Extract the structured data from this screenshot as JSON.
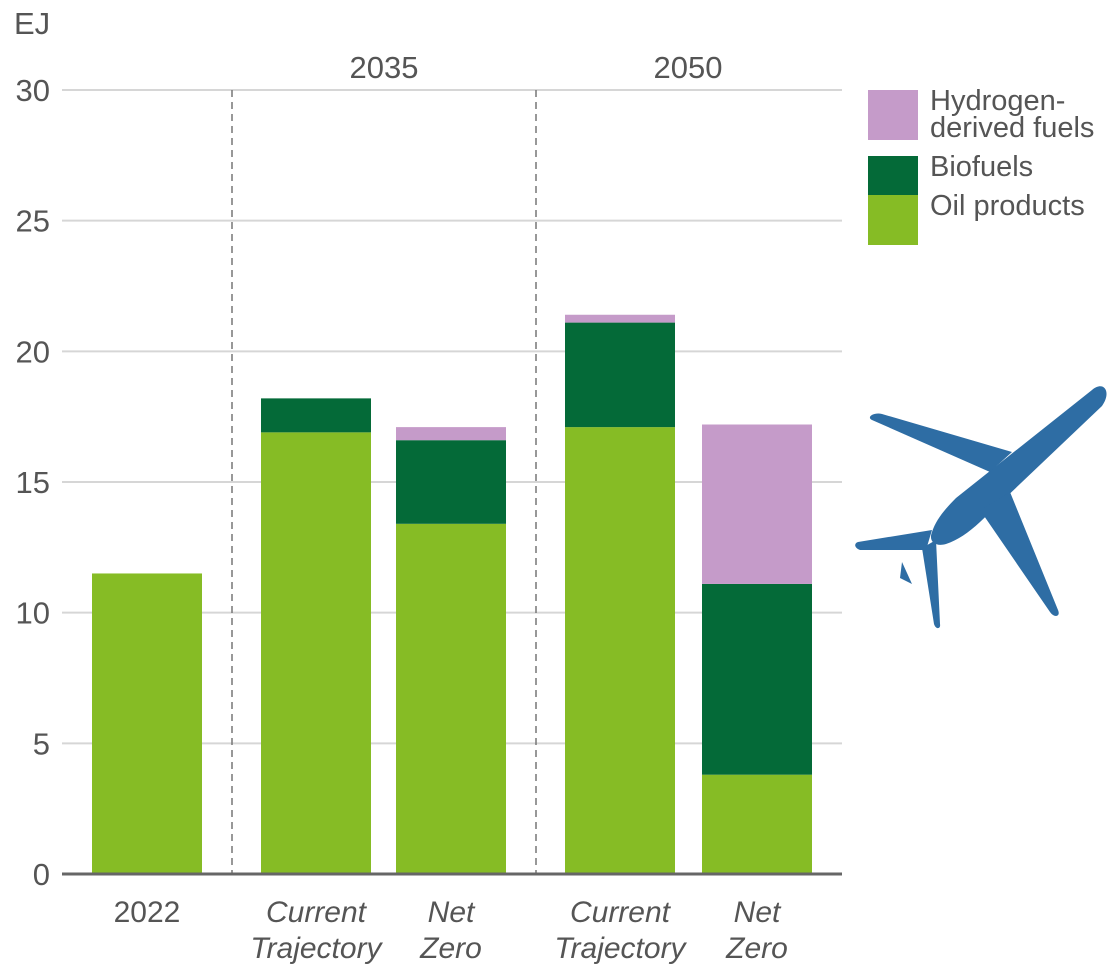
{
  "chart_data": {
    "type": "bar",
    "stacked": true,
    "ylabel": "EJ",
    "ylim": [
      0,
      30
    ],
    "yticks": [
      0,
      5,
      10,
      15,
      20,
      25,
      30
    ],
    "grid": true,
    "legend_position": "right",
    "groups": [
      {
        "label": "",
        "categories": [
          {
            "line1": "2022",
            "line2": "",
            "italic": false
          }
        ]
      },
      {
        "label": "2035",
        "categories": [
          {
            "line1": "Current",
            "line2": "Trajectory",
            "italic": true
          },
          {
            "line1": "Net",
            "line2": "Zero",
            "italic": true
          }
        ]
      },
      {
        "label": "2050",
        "categories": [
          {
            "line1": "Current",
            "line2": "Trajectory",
            "italic": true
          },
          {
            "line1": "Net",
            "line2": "Zero",
            "italic": true
          }
        ]
      }
    ],
    "series": [
      {
        "name": "Oil products",
        "color": "#86bc25",
        "values": [
          11.5,
          16.9,
          13.4,
          17.1,
          3.8
        ]
      },
      {
        "name": "Biofuels",
        "color": "#046a38",
        "values": [
          0,
          1.3,
          3.2,
          4.0,
          7.3
        ]
      },
      {
        "name": "Hydrogen-derived fuels",
        "color": "#c59bc9",
        "values": [
          0,
          0,
          0.5,
          0.3,
          6.1
        ]
      }
    ]
  },
  "legend": [
    {
      "label": "Hydrogen-derived fuels",
      "color": "#c59bc9"
    },
    {
      "label": "Biofuels",
      "color": "#046a38"
    },
    {
      "label": "Oil products",
      "color": "#86bc25"
    }
  ],
  "icons": {
    "decoration": "airplane-icon",
    "color": "#2e6da4"
  }
}
